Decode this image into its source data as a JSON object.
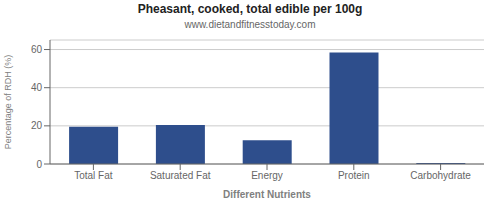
{
  "chart_data": {
    "type": "bar",
    "title": "Pheasant, cooked, total edible per 100g",
    "subtitle": "www.dietandfitnesstoday.com",
    "xlabel": "Different Nutrients",
    "ylabel": "Percentage of RDH (%)",
    "categories": [
      "Total Fat",
      "Saturated Fat",
      "Energy",
      "Protein",
      "Carbohydrate"
    ],
    "values": [
      19.5,
      20.5,
      12.5,
      58.5,
      0.5
    ],
    "color": "#2e4e8c",
    "ylim": [
      0,
      65
    ],
    "yticks": [
      0,
      20,
      40,
      60
    ],
    "grid": true
  }
}
